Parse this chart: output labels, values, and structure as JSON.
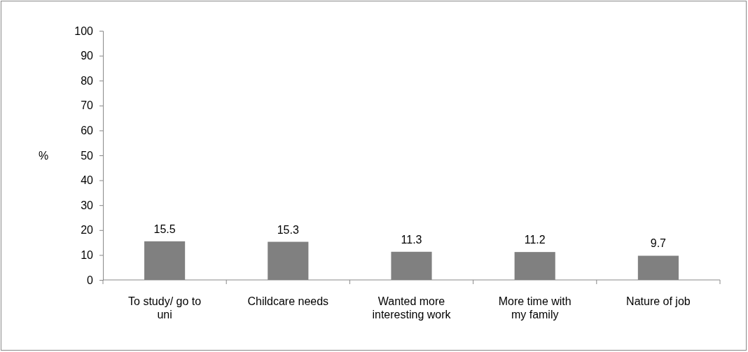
{
  "chart_data": {
    "type": "bar",
    "ylabel": "%",
    "categories": [
      "To study/ go to uni",
      "Childcare needs",
      "Wanted more interesting work",
      "More time with my family",
      "Nature of job"
    ],
    "values": [
      15.5,
      15.3,
      11.3,
      11.2,
      9.7
    ],
    "color": "#808080",
    "ylim": [
      0,
      100
    ],
    "yticks": [
      0,
      10,
      20,
      30,
      40,
      50,
      60,
      70,
      80,
      90,
      100
    ],
    "grid": false,
    "data_labels": true
  }
}
